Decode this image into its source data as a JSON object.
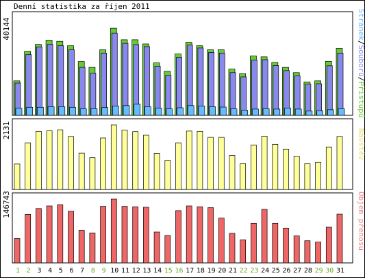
{
  "chart_data": {
    "type": "bar",
    "title": "Denní statistika za říjen 2011",
    "categories": [
      "1",
      "2",
      "3",
      "4",
      "5",
      "6",
      "7",
      "8",
      "9",
      "10",
      "11",
      "12",
      "13",
      "14",
      "15",
      "16",
      "17",
      "18",
      "19",
      "20",
      "21",
      "22",
      "23",
      "24",
      "25",
      "26",
      "27",
      "28",
      "29",
      "30",
      "31"
    ],
    "weekend_days": [
      "1",
      "2",
      "8",
      "9",
      "15",
      "16",
      "22",
      "23",
      "29",
      "30"
    ],
    "panels": [
      {
        "id": "hits",
        "ymax_label": "40144",
        "ymax": 40144,
        "series": [
          {
            "name": "Přístupů",
            "color": "#66cc33",
            "values": [
              15500,
              28800,
              31900,
              33800,
              33300,
              31300,
              24200,
              21600,
              29500,
              39200,
              34000,
              34000,
              32100,
              23600,
              19800,
              27600,
              32900,
              31300,
              29500,
              29500,
              20800,
              18700,
              26700,
              26300,
              23800,
              21600,
              19200,
              15000,
              15500,
              24300,
              30100
            ]
          },
          {
            "name": "Souborů",
            "color": "#8888ee",
            "values": [
              14500,
              27300,
              30800,
              31900,
              31300,
              29500,
              21600,
              19000,
              28000,
              37000,
              32400,
              31800,
              30900,
              22100,
              18000,
              26100,
              31600,
              30300,
              28300,
              28000,
              19200,
              17300,
              24900,
              25000,
              22400,
              20100,
              17700,
              14000,
              14200,
              22300,
              28000
            ]
          },
          {
            "name": "Stránek",
            "color": "#66bbff",
            "values": [
              3200,
              3600,
              3600,
              3900,
              3900,
              3600,
              2900,
              3000,
              3500,
              4200,
              4400,
              5000,
              3900,
              3300,
              2900,
              3400,
              4400,
              4200,
              3900,
              3700,
              2900,
              2300,
              2800,
              3000,
              2800,
              3300,
              2800,
              1900,
              2000,
              2500,
              3000
            ]
          }
        ],
        "legend": [
          "Stránek",
          "Souborů",
          "Přístupů"
        ]
      },
      {
        "id": "visits",
        "ymax_label": "2131",
        "ymax": 2131,
        "series": [
          {
            "name": "Návštěv",
            "color": "#ffff99",
            "values": [
              840,
              1540,
              1920,
              1940,
              1970,
              1750,
              1200,
              1050,
              1700,
              2131,
              1960,
              1910,
              1790,
              1190,
              960,
              1540,
              1930,
              1920,
              1720,
              1720,
              1120,
              850,
              1470,
              1760,
              1490,
              1330,
              1100,
              850,
              900,
              1400,
              1750
            ]
          }
        ]
      },
      {
        "id": "bytes",
        "ymax_label": "146743",
        "ymax": 146743,
        "series": [
          {
            "name": "Objem přenosu",
            "color": "#ee6666",
            "values": [
              56000,
              111500,
              125000,
              131000,
              133900,
              119000,
              75000,
              69000,
              130000,
              146743,
              130000,
              129000,
              128000,
              71000,
              63000,
              120000,
              131000,
              129000,
              127000,
              103000,
              68000,
              53000,
              91000,
              123000,
              91000,
              80000,
              62000,
              51000,
              48000,
              82000,
              112000
            ]
          }
        ]
      }
    ]
  }
}
